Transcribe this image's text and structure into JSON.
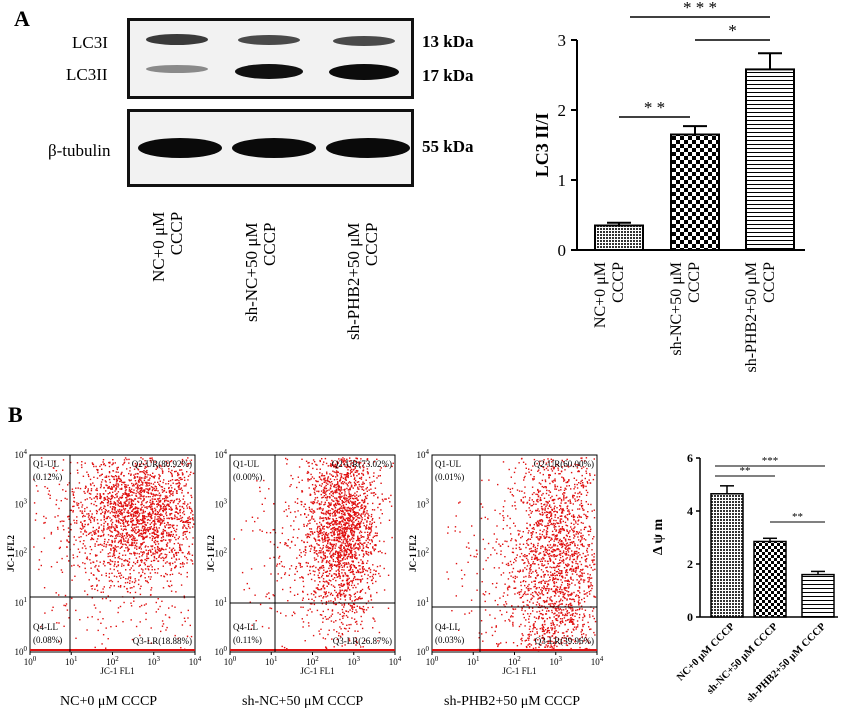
{
  "panel_a": {
    "letter": "A",
    "blot": {
      "labels": [
        "LC3I",
        "LC3II",
        "β-tubulin"
      ],
      "sizes": [
        "13 kDa",
        "17 kDa",
        "55 kDa"
      ],
      "lanes": [
        {
          "line1": "NC+0 μM",
          "line2": "CCCP"
        },
        {
          "line1": "sh-NC+50 μM",
          "line2": "CCCP"
        },
        {
          "line1": "sh-PHB2+50 μM",
          "line2": "CCCP"
        }
      ]
    }
  },
  "panel_b": {
    "letter": "B",
    "flow": [
      {
        "title": "NC+0 μM CCCP",
        "q1": "Q1-UL",
        "q1v": "(0.12%)",
        "q2": "Q2-UR(80.92%)",
        "q3": "Q3-LR(18.88%)",
        "q4": "Q4-LL",
        "q4v": "(0.08%)",
        "xlabel": "JC-1 FL1",
        "ylabel": "JC-1 FL2"
      },
      {
        "title": "sh-NC+50 μM CCCP",
        "q1": "Q1-UL",
        "q1v": "(0.00%)",
        "q2": "Q2-UR(73.02%)",
        "q3": "Q3-LR(26.87%)",
        "q4": "Q4-LL",
        "q4v": "(0.11%)",
        "xlabel": "JC-1 FL1",
        "ylabel": "JC-1 FL2"
      },
      {
        "title": "sh-PHB2+50 μM CCCP",
        "q1": "Q1-UL",
        "q1v": "(0.01%)",
        "q2": "Q2-UR(60.00%)",
        "q3": "Q3-LR(39.96%)",
        "q4": "Q4-LL",
        "q4v": "(0.03%)",
        "xlabel": "JC-1 FL1",
        "ylabel": "JC-1 FL2"
      }
    ],
    "flow_ticks": [
      "10",
      "10",
      "10",
      "10",
      "10"
    ],
    "flow_tick_exps": [
      "0",
      "1",
      "2",
      "3",
      "4"
    ]
  },
  "chart_data": [
    {
      "type": "bar",
      "ylabel": "LC3 II/I",
      "categories": [
        "NC+0 μM CCCP",
        "sh-NC+50 μM CCCP",
        "sh-PHB2+50 μM CCCP"
      ],
      "category_lines": [
        [
          "NC+0 μM",
          "CCCP"
        ],
        [
          "sh-NC+50 μM",
          "CCCP"
        ],
        [
          "sh-PHB2+50 μM",
          "CCCP"
        ]
      ],
      "values": [
        0.35,
        1.65,
        2.58
      ],
      "errors": [
        0.04,
        0.12,
        0.23
      ],
      "ylim": [
        0,
        3
      ],
      "yticks": [
        "0",
        "1",
        "2",
        "3"
      ],
      "significance": [
        {
          "from": 0,
          "to": 1,
          "label": "* *"
        },
        {
          "from": 1,
          "to": 2,
          "label": "*"
        },
        {
          "from": 0,
          "to": 2,
          "label": "* * *"
        }
      ]
    },
    {
      "type": "bar",
      "ylabel": "Δ ψ m",
      "categories": [
        "NC+0 μM CCCP",
        "sh-NC+50 μM CCCP",
        "sh-PHB2+50 μM CCCP"
      ],
      "values": [
        4.65,
        2.85,
        1.6
      ],
      "errors": [
        0.3,
        0.12,
        0.12
      ],
      "ylim": [
        0,
        6
      ],
      "yticks": [
        "0",
        "2",
        "4",
        "6"
      ],
      "significance": [
        {
          "from": 0,
          "to": 1,
          "label": "**"
        },
        {
          "from": 0,
          "to": 2,
          "label": "***"
        },
        {
          "from": 1,
          "to": 2,
          "label": "**"
        }
      ]
    }
  ]
}
